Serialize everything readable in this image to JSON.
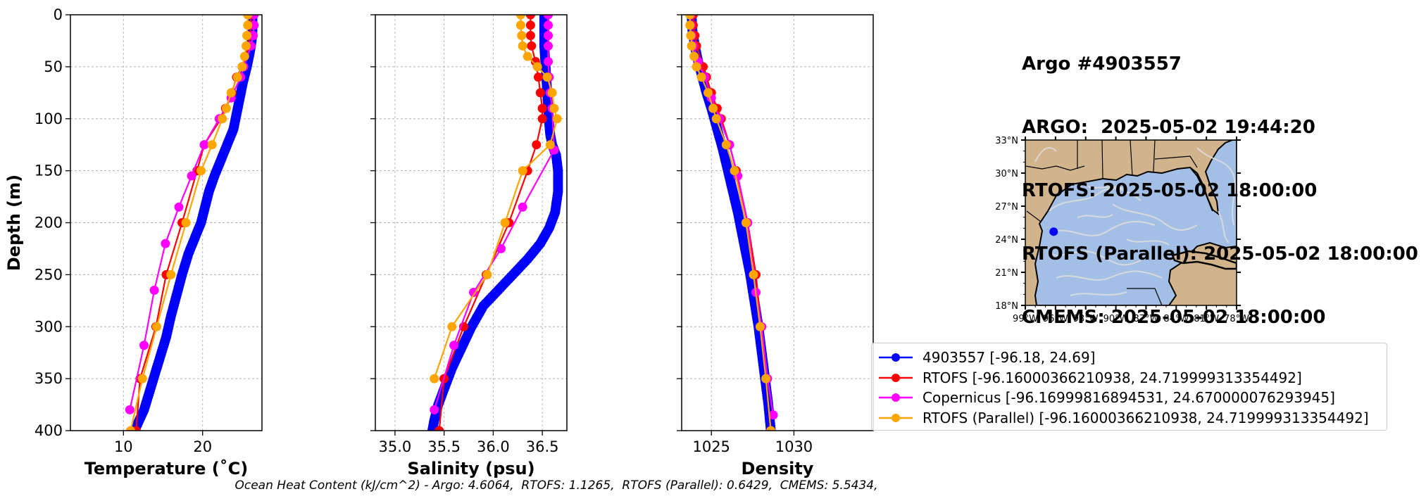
{
  "title_lines": [
    "Argo #4903557",
    "ARGO:  2025-05-02 19:44:20",
    "RTOFS: 2025-05-02 18:00:00",
    "RTOFS (Parallel): 2025-05-02 18:00:00",
    "CMEMS: 2025-05-02 18:00:00"
  ],
  "footer": "Ocean Heat Content (kJ/cm^2) - Argo: 4.6064,  RTOFS: 1.1265,  RTOFS (Parallel): 0.6429,  CMEMS: 5.5434,",
  "legend": [
    {
      "label": "4903557 [-96.18, 24.69]",
      "color": "#0000ff"
    },
    {
      "label": "RTOFS [-96.16000366210938, 24.719999313354492]",
      "color": "#ff0000"
    },
    {
      "label": "Copernicus [-96.16999816894531, 24.670000076293945]",
      "color": "#ff00ff"
    },
    {
      "label": "RTOFS (Parallel) [-96.16000366210938, 24.719999313354492]",
      "color": "#ffa500"
    }
  ],
  "chart_data": [
    {
      "type": "line",
      "xlabel": "Temperature (˚C)",
      "ylabel": "Depth (m)",
      "xlim": [
        3.3,
        27.5
      ],
      "ylim": [
        400,
        0
      ],
      "x_ticks": [
        10,
        20
      ],
      "y_ticks": [
        0,
        50,
        100,
        150,
        200,
        250,
        300,
        350,
        400
      ],
      "grid": true,
      "series": [
        {
          "name": "4903557 [-96.18, 24.69]",
          "color": "#0000ff",
          "dense": true,
          "x": [
            26.3,
            26.3,
            26.2,
            26.0,
            25.6,
            25.1,
            24.7,
            24.3,
            23.9,
            23.1,
            22.3,
            21.5,
            20.8,
            20.3,
            19.8,
            19.0,
            18.2,
            17.4,
            16.7,
            16.0,
            15.4,
            14.6,
            13.8,
            13.2,
            12.6,
            12.0,
            11.4
          ],
          "y": [
            0,
            15,
            25,
            35,
            50,
            65,
            80,
            95,
            110,
            125,
            140,
            155,
            170,
            185,
            200,
            215,
            230,
            250,
            270,
            290,
            310,
            330,
            350,
            365,
            380,
            390,
            400
          ]
        },
        {
          "name": "RTOFS [-96.16000366210938, 24.719999313354492]",
          "color": "#ff0000",
          "x": [
            26.1,
            26.1,
            26.0,
            25.8,
            25.0,
            24.3,
            23.7,
            22.9,
            22.3,
            20.2,
            19.3,
            17.4,
            15.4,
            14.1,
            12.1,
            11.6
          ],
          "y": [
            0,
            10,
            20,
            30,
            50,
            60,
            75,
            90,
            100,
            125,
            150,
            200,
            250,
            300,
            350,
            400
          ]
        },
        {
          "name": "Copernicus [-96.16999816894531, 24.670000076293945]",
          "color": "#ff00ff",
          "x": [
            26.5,
            26.5,
            26.4,
            26.1,
            25.2,
            24.8,
            23.6,
            22.1,
            20.2,
            18.6,
            17.0,
            15.3,
            13.9,
            12.6,
            10.8
          ],
          "y": [
            0,
            10,
            20,
            30,
            50,
            60,
            80,
            100,
            125,
            155,
            185,
            220,
            265,
            318,
            380
          ]
        },
        {
          "name": "RTOFS (Parallel) [-96.16000366210938, 24.719999313354492]",
          "color": "#ffa500",
          "x": [
            25.7,
            25.7,
            25.6,
            25.5,
            25.3,
            25.0,
            24.4,
            23.6,
            23.0,
            22.5,
            21.2,
            19.8,
            17.9,
            16.0,
            14.2,
            12.4,
            10.9
          ],
          "y": [
            0,
            10,
            20,
            30,
            40,
            50,
            60,
            75,
            90,
            100,
            125,
            150,
            200,
            250,
            300,
            350,
            400
          ]
        }
      ]
    },
    {
      "type": "line",
      "xlabel": "Salinity (psu)",
      "ylabel": "",
      "xlim": [
        34.8,
        36.75
      ],
      "ylim": [
        400,
        0
      ],
      "x_ticks": [
        35.0,
        35.5,
        36.0,
        36.5
      ],
      "x_tick_labels": [
        "35.0",
        "35.5",
        "36.0",
        "36.5"
      ],
      "y_ticks": [
        0,
        50,
        100,
        150,
        200,
        250,
        300,
        350,
        400
      ],
      "grid": true,
      "series": [
        {
          "name": "4903557 [-96.18, 24.69]",
          "color": "#0000ff",
          "dense": true,
          "x": [
            36.52,
            36.52,
            36.52,
            36.53,
            36.54,
            36.55,
            36.56,
            36.57,
            36.58,
            36.6,
            36.64,
            36.66,
            36.66,
            36.63,
            36.57,
            36.48,
            36.35,
            36.2,
            36.05,
            35.9,
            35.78,
            35.68,
            35.58,
            35.5,
            35.44,
            35.4,
            35.38
          ],
          "y": [
            0,
            15,
            30,
            45,
            60,
            75,
            90,
            105,
            115,
            125,
            135,
            150,
            170,
            190,
            205,
            220,
            235,
            250,
            265,
            280,
            300,
            320,
            340,
            360,
            375,
            390,
            400
          ]
        },
        {
          "name": "RTOFS [-96.16000366210938, 24.719999313354492]",
          "color": "#ff0000",
          "x": [
            36.38,
            36.38,
            36.38,
            36.39,
            36.43,
            36.46,
            36.48,
            36.5,
            36.5,
            36.44,
            36.35,
            36.16,
            35.93,
            35.7,
            35.5,
            35.45
          ],
          "y": [
            0,
            10,
            20,
            30,
            45,
            60,
            75,
            90,
            100,
            125,
            150,
            200,
            250,
            300,
            350,
            400
          ]
        },
        {
          "name": "Copernicus [-96.16999816894531, 24.670000076293945]",
          "color": "#ff00ff",
          "x": [
            36.56,
            36.56,
            36.56,
            36.56,
            36.56,
            36.57,
            36.58,
            36.6,
            36.62,
            36.3,
            36.08,
            35.8,
            35.6,
            35.4
          ],
          "y": [
            0,
            10,
            20,
            30,
            45,
            60,
            75,
            90,
            130,
            185,
            225,
            267,
            318,
            380
          ]
        },
        {
          "name": "RTOFS (Parallel) [-96.16000366210938, 24.719999313354492]",
          "color": "#ffa500",
          "x": [
            36.28,
            36.28,
            36.29,
            36.3,
            36.35,
            36.45,
            36.55,
            36.6,
            36.62,
            36.65,
            36.58,
            36.3,
            36.12,
            35.94,
            35.58,
            35.4
          ],
          "y": [
            0,
            10,
            20,
            30,
            40,
            50,
            60,
            75,
            90,
            100,
            125,
            150,
            200,
            250,
            300,
            350
          ]
        }
      ]
    },
    {
      "type": "line",
      "xlabel": "Density",
      "ylabel": "",
      "xlim": [
        1023.2,
        1034.8
      ],
      "ylim": [
        400,
        0
      ],
      "x_ticks": [
        1025,
        1030
      ],
      "y_ticks": [
        0,
        50,
        100,
        150,
        200,
        250,
        300,
        350,
        400
      ],
      "grid": true,
      "series": [
        {
          "name": "4903557 [-96.18, 24.69]",
          "color": "#0000ff",
          "dense": true,
          "x": [
            1023.8,
            1023.85,
            1024.0,
            1024.2,
            1024.45,
            1024.7,
            1025.0,
            1025.35,
            1025.7,
            1026.0,
            1026.3,
            1026.6,
            1026.85,
            1027.1,
            1027.35,
            1027.6,
            1027.85,
            1028.05,
            1028.25,
            1028.45,
            1028.6
          ],
          "y": [
            0,
            15,
            30,
            45,
            60,
            75,
            90,
            110,
            130,
            150,
            170,
            190,
            210,
            230,
            250,
            275,
            300,
            325,
            350,
            375,
            400
          ]
        },
        {
          "name": "RTOFS [-96.16000366210938, 24.719999313354492]",
          "color": "#ff0000",
          "x": [
            1023.9,
            1023.9,
            1024.0,
            1024.1,
            1024.5,
            1024.7,
            1025.0,
            1025.35,
            1025.6,
            1026.1,
            1026.5,
            1027.2,
            1027.7,
            1028.0,
            1028.3,
            1028.6
          ],
          "y": [
            0,
            10,
            20,
            30,
            50,
            60,
            75,
            90,
            100,
            125,
            150,
            200,
            250,
            300,
            350,
            400
          ]
        },
        {
          "name": "Copernicus [-96.16999816894531, 24.670000076293945]",
          "color": "#ff00ff",
          "x": [
            1023.75,
            1023.75,
            1023.8,
            1023.9,
            1024.2,
            1024.6,
            1025.0,
            1025.5,
            1026.1,
            1026.6,
            1027.2,
            1027.7,
            1028.05,
            1028.4,
            1028.75
          ],
          "y": [
            0,
            10,
            20,
            30,
            45,
            60,
            80,
            100,
            125,
            155,
            200,
            267,
            300,
            350,
            385
          ]
        },
        {
          "name": "RTOFS (Parallel) [-96.16000366210938, 24.719999313354492]",
          "color": "#ffa500",
          "x": [
            1023.7,
            1023.7,
            1023.75,
            1023.8,
            1023.95,
            1024.1,
            1024.4,
            1024.8,
            1025.1,
            1025.3,
            1025.9,
            1026.4,
            1027.1,
            1027.55,
            1027.95,
            1028.3,
            1028.6
          ],
          "y": [
            0,
            10,
            20,
            30,
            40,
            50,
            60,
            75,
            90,
            100,
            125,
            150,
            200,
            250,
            300,
            350,
            400
          ]
        }
      ]
    },
    {
      "type": "map",
      "x_ticks": [
        -99,
        -96,
        -93,
        -90,
        -87,
        -84,
        -81,
        -78
      ],
      "x_tick_labels": [
        "99°W",
        "96°W",
        "93°W",
        "90°W",
        "87°W",
        "84°W",
        "81°W",
        "78°W"
      ],
      "y_ticks": [
        18,
        21,
        24,
        27,
        30,
        33
      ],
      "y_tick_labels": [
        "18°N",
        "21°N",
        "24°N",
        "27°N",
        "30°N",
        "33°N"
      ],
      "xlim": [
        -99,
        -78
      ],
      "ylim": [
        18,
        33
      ],
      "land_color": "#d2b48c",
      "water_color": "#a4bfe6",
      "marker": {
        "lon": -96.18,
        "lat": 24.69,
        "color": "#0000ff"
      }
    }
  ]
}
